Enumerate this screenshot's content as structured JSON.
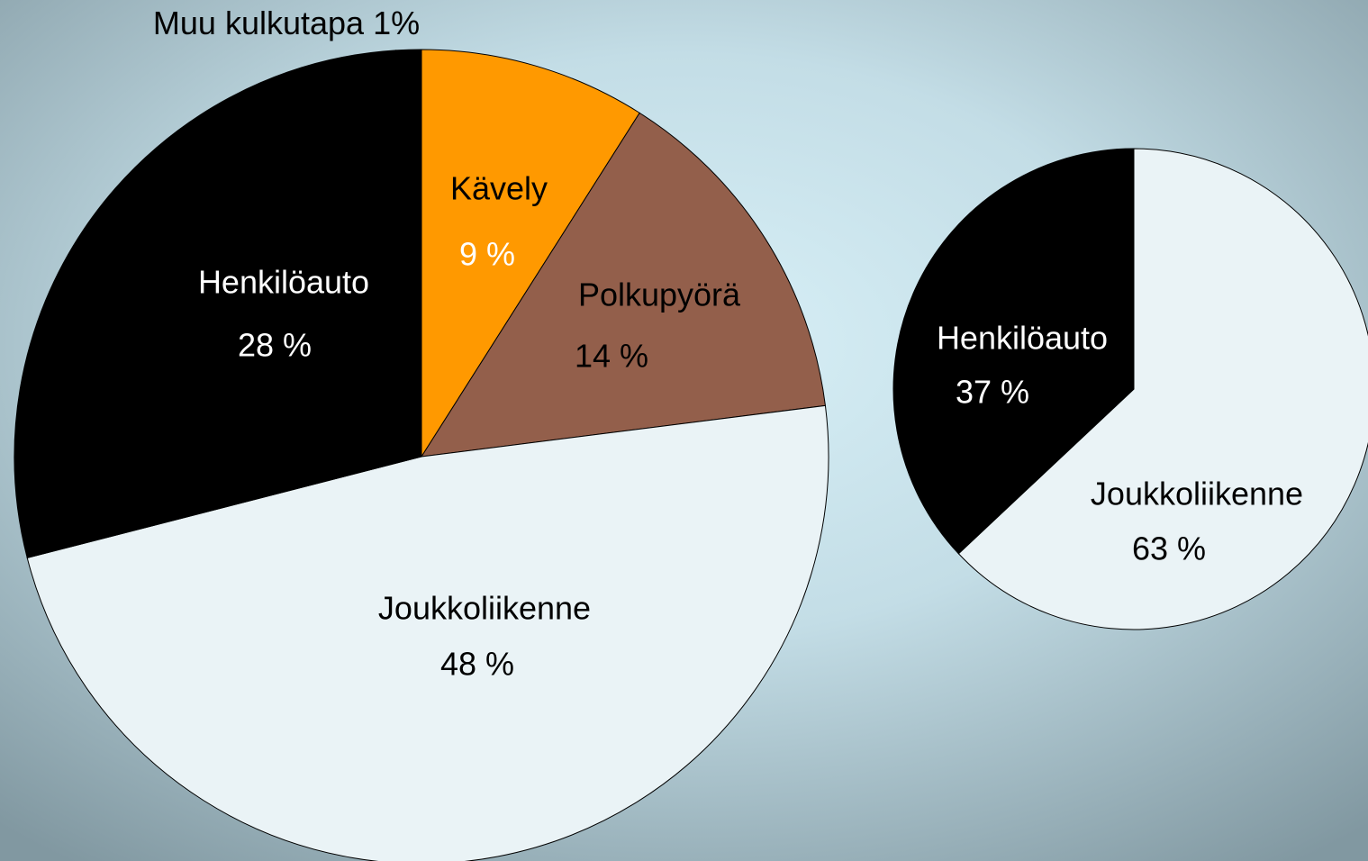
{
  "chart_data": [
    {
      "type": "pie",
      "categories": [
        "Kävely",
        "Polkupyörä",
        "Joukkoliikenne",
        "Henkilöauto",
        "Muu kulkutapa"
      ],
      "values": [
        9,
        14,
        48,
        28,
        1
      ],
      "value_labels": [
        "9 %",
        "14 %",
        "48 %",
        "28 %",
        "1%"
      ],
      "colors": [
        "#ff9900",
        "#935f4b",
        "#eaf3f6",
        "#000000",
        "#000000"
      ]
    },
    {
      "type": "pie",
      "categories": [
        "Joukkoliikenne",
        "Henkilöauto"
      ],
      "values": [
        63,
        37
      ],
      "value_labels": [
        "63 %",
        "37 %"
      ],
      "colors": [
        "#eaf3f6",
        "#000000"
      ]
    }
  ]
}
